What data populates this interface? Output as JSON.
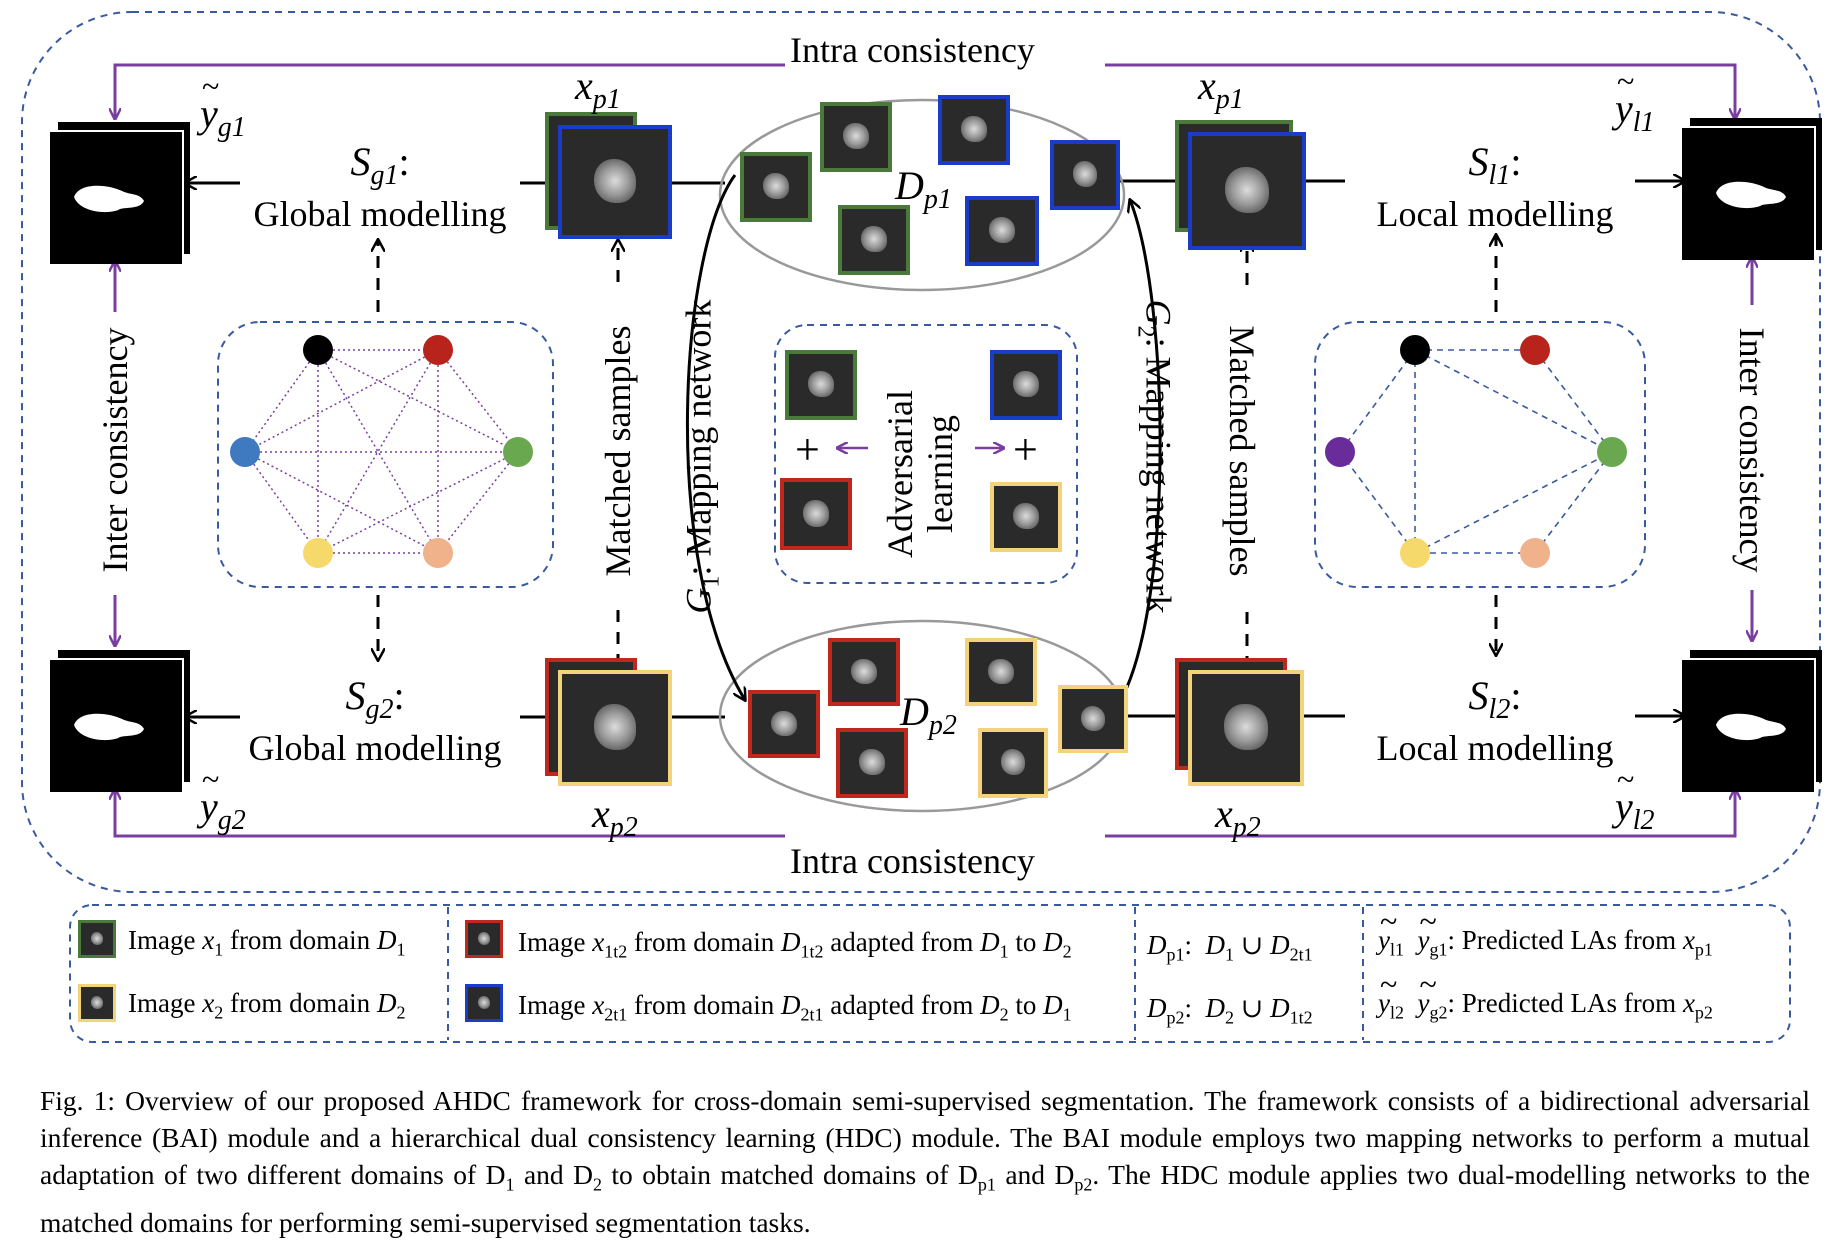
{
  "intra_top": "Intra consistency",
  "intra_bottom": "Intra consistency",
  "inter_left": "Inter consistency",
  "inter_right": "Inter consistency",
  "matched_left": "Matched samples",
  "matched_right": "Matched samples",
  "g1_label": "G",
  "g1_sub": "1",
  "g1_text": ": Mapping network",
  "g2_label": "G",
  "g2_sub": "2",
  "g2_text": ": Mapping network",
  "adversarial_line1": "Adversarial",
  "adversarial_line2": "learning",
  "sg1": {
    "sym": "S",
    "sub": "g1",
    "colon": ":",
    "text": "Global modelling"
  },
  "sg2": {
    "sym": "S",
    "sub": "g2",
    "colon": ":",
    "text": "Global modelling"
  },
  "sl1": {
    "sym": "S",
    "sub": "l1",
    "colon": ":",
    "text": "Local modelling"
  },
  "sl2": {
    "sym": "S",
    "sub": "l2",
    "colon": ":",
    "text": "Local modelling"
  },
  "yg1": {
    "sym": "y",
    "sub": "g1"
  },
  "yg2": {
    "sym": "y",
    "sub": "g2"
  },
  "yl1": {
    "sym": "y",
    "sub": "l1"
  },
  "yl2": {
    "sym": "y",
    "sub": "l2"
  },
  "xp1_left": {
    "sym": "x",
    "sub": "p1"
  },
  "xp1_right": {
    "sym": "x",
    "sub": "p1"
  },
  "xp2_left": {
    "sym": "x",
    "sub": "p2"
  },
  "xp2_right": {
    "sym": "x",
    "sub": "p2"
  },
  "dp1": {
    "sym": "D",
    "sub": "p1"
  },
  "dp2": {
    "sym": "D",
    "sub": "p2"
  },
  "plus": "+",
  "colors": {
    "green": "#4a7a3a",
    "blue": "#1a3cc8",
    "red": "#c0281e",
    "yellow": "#f2d27a",
    "purple": "#7a3ea0",
    "dashed_blue": "#3a5aa0",
    "node_black": "#000000",
    "node_red": "#b8231c",
    "node_blue": "#3f7ac0",
    "node_green": "#6aa84f",
    "node_yellow": "#f6d96b",
    "node_peach": "#efb28a",
    "node_purple": "#6a2c9a"
  },
  "legend": {
    "row1_col1": {
      "pre": "Image ",
      "var": "x",
      "varsub": "1",
      "mid": " from domain ",
      "dom": "D",
      "domsub": "1"
    },
    "row2_col1": {
      "pre": "Image ",
      "var": "x",
      "varsub": "2",
      "mid": " from domain ",
      "dom": "D",
      "domsub": "2"
    },
    "row1_col2": {
      "pre": "Image ",
      "var": "x",
      "varsub": "1t2",
      "mid": " from domain ",
      "dom": "D",
      "domsub": "1t2",
      "post": " adapted from ",
      "a": "D",
      "asub": "1",
      "to": " to ",
      "b": "D",
      "bsub": "2"
    },
    "row2_col2": {
      "pre": "Image ",
      "var": "x",
      "varsub": "2t1",
      "mid": " from domain ",
      "dom": "D",
      "domsub": "2t1",
      "post": " adapted from ",
      "a": "D",
      "asub": "2",
      "to": " to ",
      "b": "D",
      "bsub": "1"
    },
    "row1_col3": {
      "lhs": "D",
      "lhssub": "p1",
      "colon": ":",
      "a": "D",
      "asub": "1",
      "union": " ∪ ",
      "b": "D",
      "bsub": "2t1"
    },
    "row2_col3": {
      "lhs": "D",
      "lhssub": "p2",
      "colon": ":",
      "a": "D",
      "asub": "2",
      "union": " ∪ ",
      "b": "D",
      "bsub": "1t2"
    },
    "row1_col4": {
      "y1": "y",
      "y1sub": "l1",
      "y2": "y",
      "y2sub": "g1",
      "text": ": Predicted LAs from ",
      "x": "x",
      "xsub": "p1"
    },
    "row2_col4": {
      "y1": "y",
      "y1sub": "l2",
      "y2": "y",
      "y2sub": "g2",
      "text": ": Predicted LAs from ",
      "x": "x",
      "xsub": "p2"
    }
  },
  "caption": {
    "part1": "Fig. 1: Overview of our proposed AHDC framework for cross-domain semi-supervised segmentation. The framework consists of a bidirectional adversarial inference (BAI) module and a hierarchical dual consistency learning (HDC) module. The BAI module employs two mapping networks to perform a mutual adaptation of two different domains of D",
    "sub1": "1",
    "part2": " and D",
    "sub2": "2",
    "part3": "  to obtain matched domains of D",
    "sub3": "p1",
    "part4": "  and D",
    "sub4": "p2",
    "part5": ". The HDC module applies two dual-modelling networks to the matched domains for performing semi-supervised segmentation tasks."
  }
}
